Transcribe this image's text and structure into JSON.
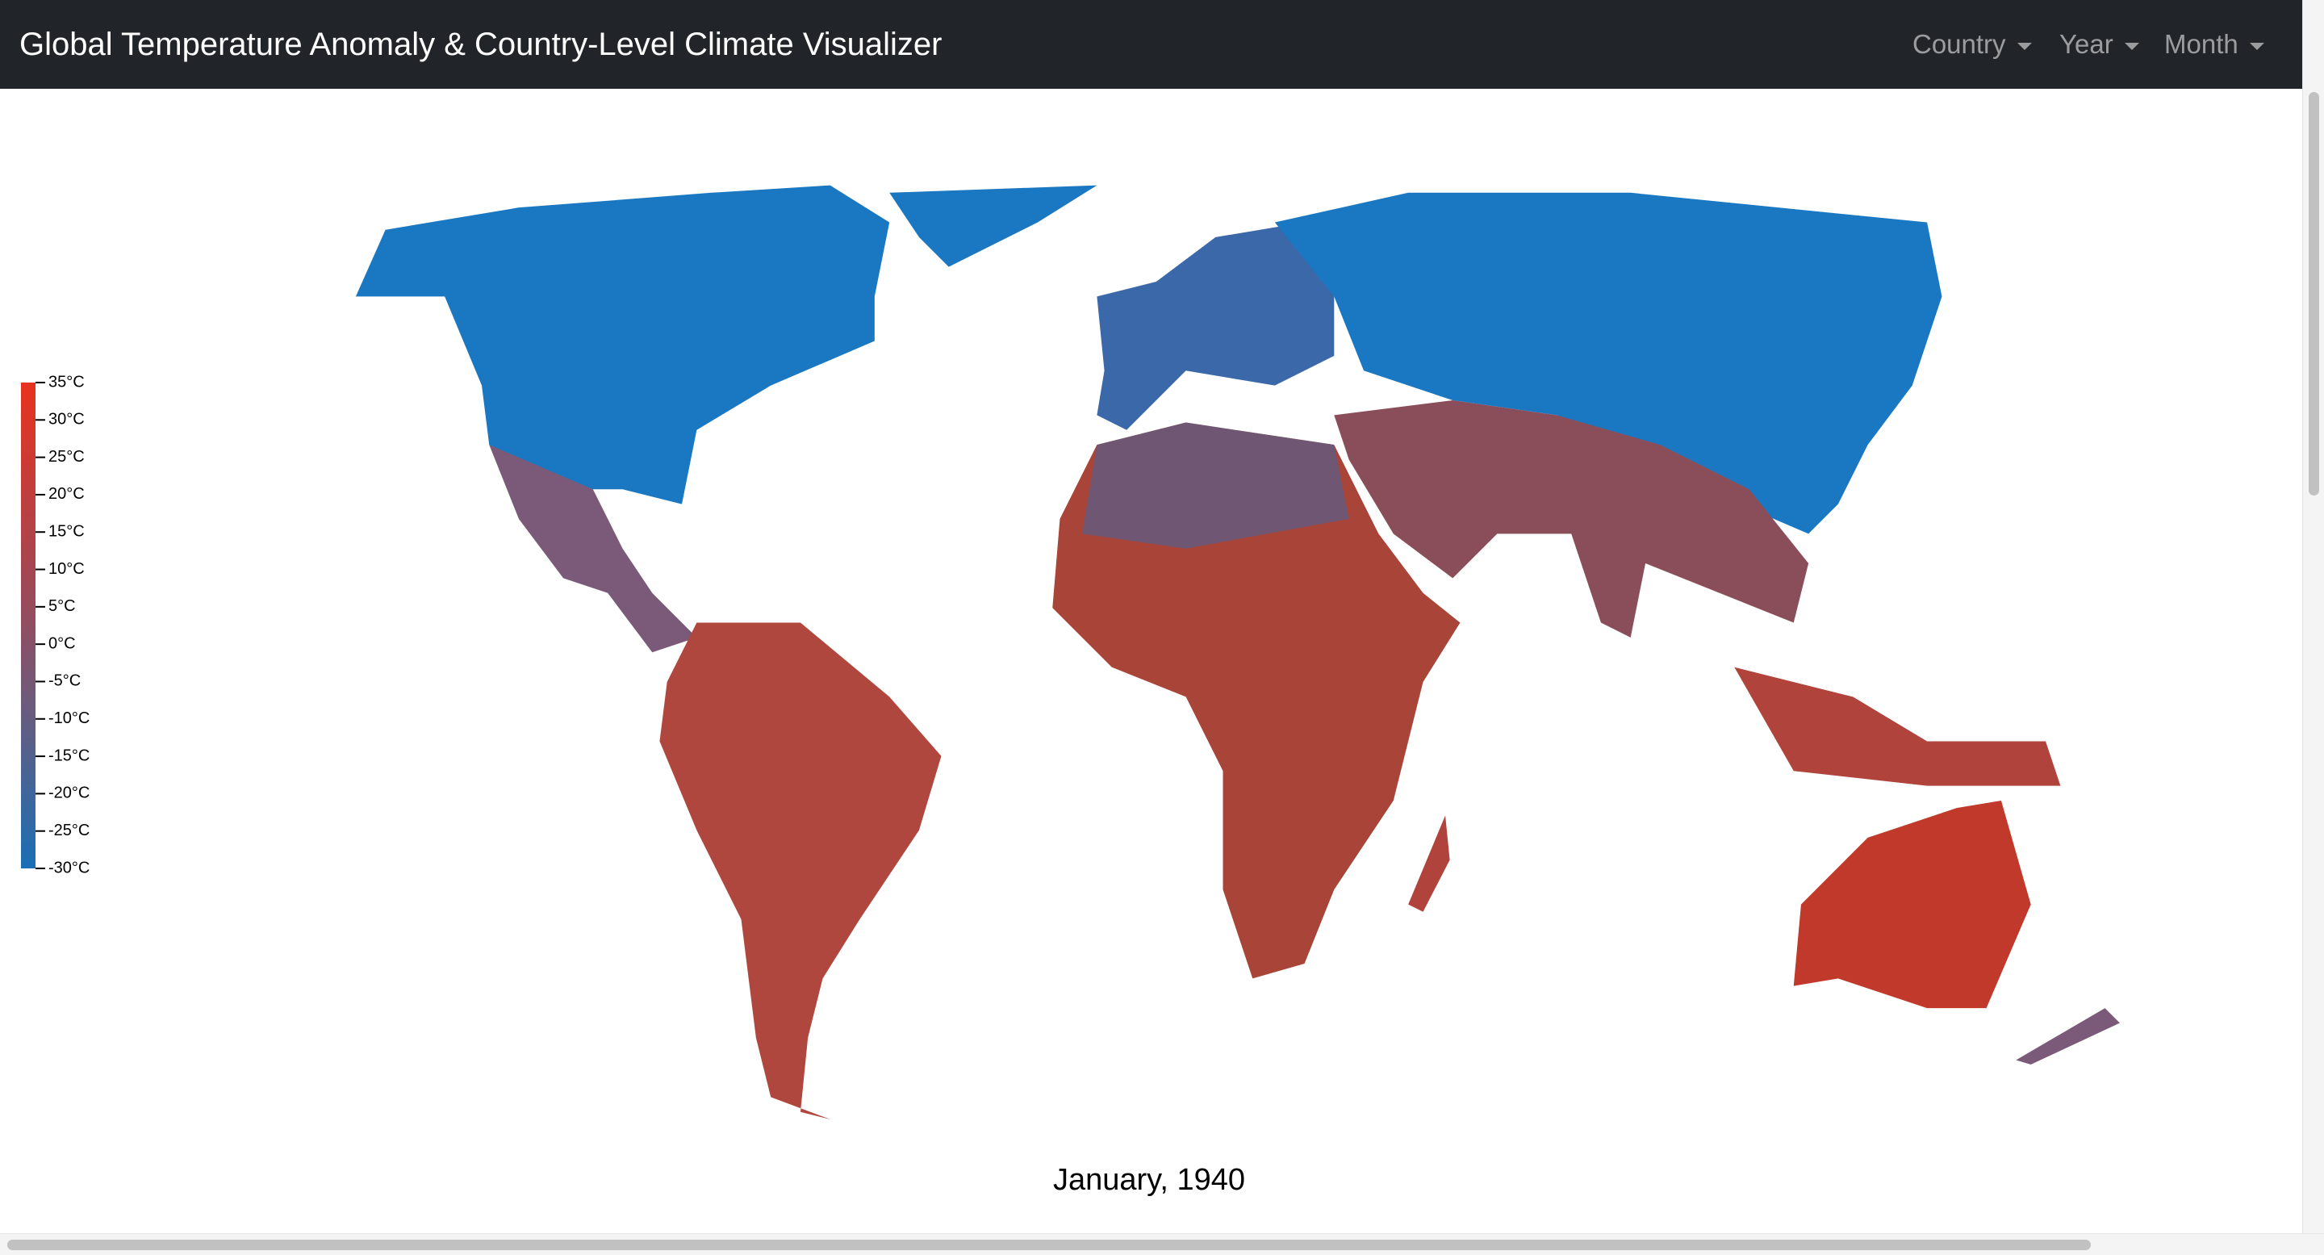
{
  "header": {
    "title": "Global Temperature Anomaly & Country-Level Climate Visualizer",
    "menus": [
      "Country",
      "Year",
      "Month"
    ]
  },
  "legend": {
    "range": [
      -30,
      35
    ],
    "ticks": [
      {
        "value": 35,
        "label": "35°C"
      },
      {
        "value": 30,
        "label": "30°C"
      },
      {
        "value": 25,
        "label": "25°C"
      },
      {
        "value": 20,
        "label": "20°C"
      },
      {
        "value": 15,
        "label": "15°C"
      },
      {
        "value": 10,
        "label": "10°C"
      },
      {
        "value": 5,
        "label": "5°C"
      },
      {
        "value": 0,
        "label": "0°C"
      },
      {
        "value": -5,
        "label": "-5°C"
      },
      {
        "value": -10,
        "label": "-10°C"
      },
      {
        "value": -15,
        "label": "-15°C"
      },
      {
        "value": -20,
        "label": "-20°C"
      },
      {
        "value": -25,
        "label": "-25°C"
      },
      {
        "value": -30,
        "label": "-30°C"
      }
    ]
  },
  "caption": "January, 1940"
}
